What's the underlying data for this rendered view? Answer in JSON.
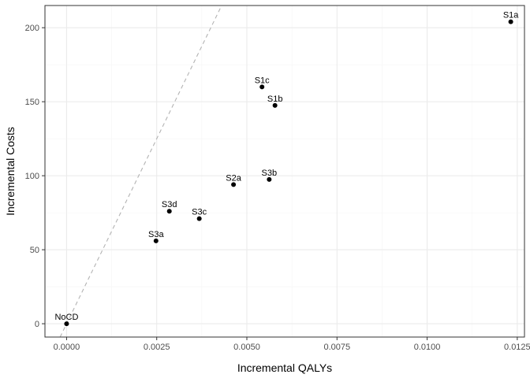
{
  "chart_data": {
    "type": "scatter",
    "title": "",
    "xlabel": "Incremental QALYs",
    "ylabel": "Incremental Costs",
    "xlim": [
      -0.0006,
      0.0127
    ],
    "ylim": [
      -9,
      215
    ],
    "x_ticks": [
      0.0,
      0.0025,
      0.005,
      0.0075,
      0.01,
      0.0125
    ],
    "x_tick_labels": [
      "0.0000",
      "0.0025",
      "0.0050",
      "0.0075",
      "0.0100",
      "0.0125"
    ],
    "y_ticks": [
      0,
      50,
      100,
      150,
      200
    ],
    "y_tick_labels": [
      "0",
      "50",
      "100",
      "150",
      "200"
    ],
    "grid": true,
    "reference_line": {
      "style": "dashed",
      "color": "#b3b3b3",
      "slope": 50000,
      "intercept": 0
    },
    "points": [
      {
        "label": "NoCD",
        "x": 0.0,
        "y": 0.0
      },
      {
        "label": "S3a",
        "x": 0.00248,
        "y": 56
      },
      {
        "label": "S3d",
        "x": 0.00285,
        "y": 76
      },
      {
        "label": "S3c",
        "x": 0.00368,
        "y": 71
      },
      {
        "label": "S2a",
        "x": 0.00463,
        "y": 94
      },
      {
        "label": "S3b",
        "x": 0.00562,
        "y": 97.5
      },
      {
        "label": "S1c",
        "x": 0.00542,
        "y": 160
      },
      {
        "label": "S1b",
        "x": 0.00578,
        "y": 147.5
      },
      {
        "label": "S1a",
        "x": 0.01232,
        "y": 204
      }
    ],
    "colors": {
      "panel_border": "#333333",
      "grid_major": "#ebebeb",
      "grid_minor": "#f5f5f5",
      "point": "#000000"
    }
  }
}
